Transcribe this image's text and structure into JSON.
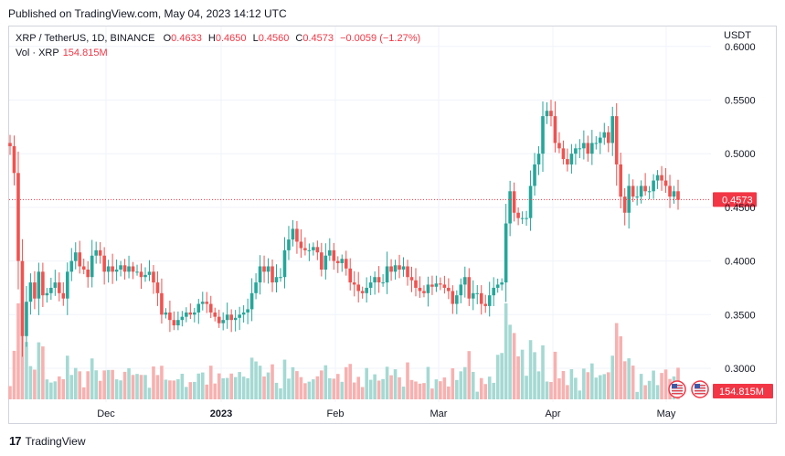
{
  "header": {
    "published": "Published on TradingView.com, May 04, 2023 14:12 UTC"
  },
  "legend": {
    "symbol": "XRP / TetherUS, 1D, BINANCE",
    "open_label": "O",
    "open": "0.4633",
    "high_label": "H",
    "high": "0.4650",
    "low_label": "L",
    "low": "0.4560",
    "close_label": "C",
    "close": "0.4573",
    "change": "−0.0059 (−1.27%)",
    "volume_label": "Vol · XRP",
    "volume": "154.815M"
  },
  "axis": {
    "currency": "USDT"
  },
  "footer": {
    "brand": "TradingView",
    "logo": "17"
  },
  "colors": {
    "up": "#26a69a",
    "down": "#ef5350",
    "up_vol": "#a5d9d3",
    "down_vol": "#f7b1b0",
    "price_tag": "#f23645",
    "grid": "#f0f3fa"
  },
  "icons": [
    "us-flag-event-icon",
    "us-flag-event-icon"
  ],
  "chart_data": {
    "type": "candlestick",
    "y_ticks": [
      "0.3000",
      "0.3500",
      "0.4000",
      "0.4500",
      "0.5000",
      "0.5500",
      "0.6000"
    ],
    "ylim": [
      0.285,
      0.605
    ],
    "x_ticks": [
      "Dec",
      "2023",
      "Feb",
      "Mar",
      "Apr",
      "May"
    ],
    "current_price": "0.4573",
    "current_volume": "154.815M",
    "closes": [
      0.507,
      0.482,
      0.4,
      0.33,
      0.362,
      0.38,
      0.365,
      0.39,
      0.368,
      0.37,
      0.375,
      0.38,
      0.37,
      0.365,
      0.39,
      0.4,
      0.408,
      0.395,
      0.392,
      0.385,
      0.405,
      0.41,
      0.405,
      0.39,
      0.395,
      0.39,
      0.392,
      0.396,
      0.39,
      0.395,
      0.39,
      0.39,
      0.385,
      0.387,
      0.39,
      0.38,
      0.37,
      0.35,
      0.352,
      0.345,
      0.34,
      0.345,
      0.348,
      0.352,
      0.35,
      0.352,
      0.36,
      0.362,
      0.36,
      0.352,
      0.348,
      0.342,
      0.345,
      0.35,
      0.345,
      0.347,
      0.35,
      0.352,
      0.355,
      0.37,
      0.38,
      0.395,
      0.39,
      0.395,
      0.38,
      0.385,
      0.385,
      0.41,
      0.42,
      0.43,
      0.418,
      0.412,
      0.41,
      0.41,
      0.413,
      0.408,
      0.392,
      0.405,
      0.41,
      0.4,
      0.398,
      0.402,
      0.393,
      0.38,
      0.378,
      0.372,
      0.37,
      0.375,
      0.38,
      0.385,
      0.38,
      0.38,
      0.395,
      0.39,
      0.396,
      0.392,
      0.395,
      0.385,
      0.382,
      0.375,
      0.372,
      0.37,
      0.378,
      0.376,
      0.379,
      0.378,
      0.375,
      0.372,
      0.36,
      0.368,
      0.378,
      0.385,
      0.365,
      0.37,
      0.37,
      0.36,
      0.358,
      0.368,
      0.375,
      0.378,
      0.38,
      0.435,
      0.465,
      0.445,
      0.44,
      0.44,
      0.44,
      0.47,
      0.49,
      0.5,
      0.535,
      0.54,
      0.535,
      0.51,
      0.505,
      0.495,
      0.49,
      0.5,
      0.505,
      0.505,
      0.51,
      0.5,
      0.51,
      0.51,
      0.515,
      0.52,
      0.51,
      0.535,
      0.49,
      0.46,
      0.445,
      0.47,
      0.46,
      0.46,
      0.47,
      0.465,
      0.465,
      0.475,
      0.48,
      0.475,
      0.47,
      0.46,
      0.465,
      0.457
    ]
  }
}
